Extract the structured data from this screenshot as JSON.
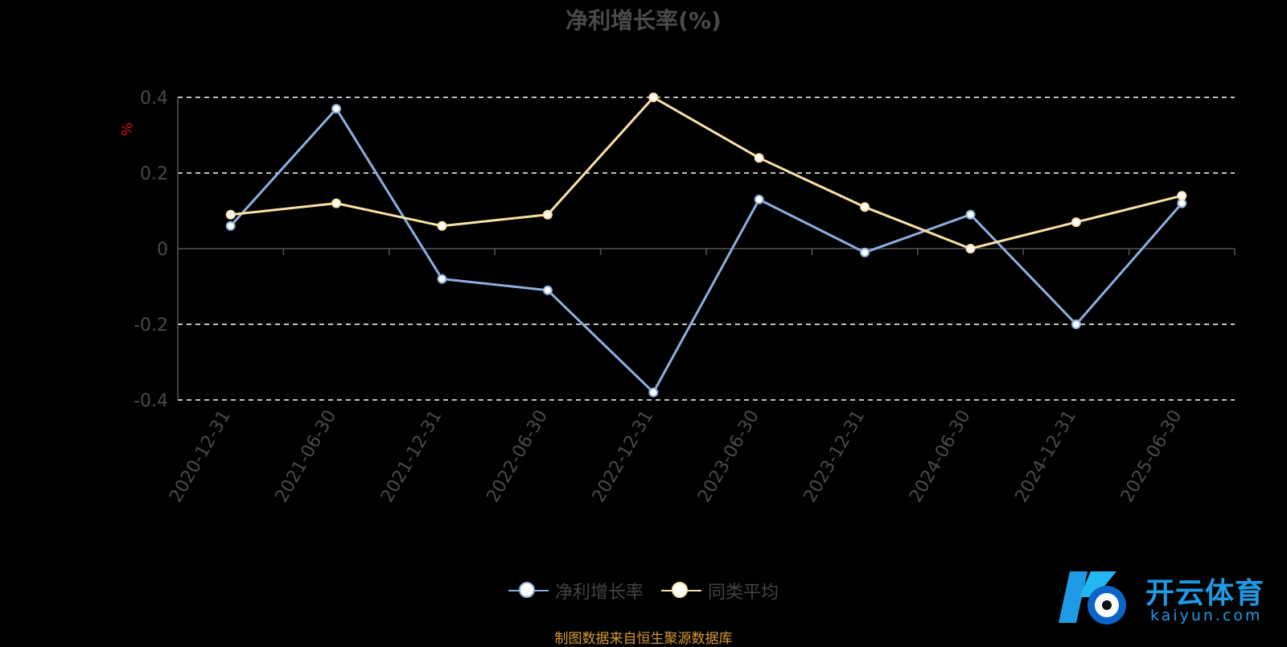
{
  "chart_data": {
    "type": "line",
    "title": "净利增长率(%)",
    "ylabel": "%",
    "categories": [
      "2020-12-31",
      "2021-06-30",
      "2021-12-31",
      "2022-06-30",
      "2022-12-31",
      "2023-06-30",
      "2023-12-31",
      "2024-06-30",
      "2024-12-31",
      "2025-06-30"
    ],
    "series": [
      {
        "name": "净利增长率",
        "color": "#8eaee0",
        "values": [
          0.06,
          0.37,
          -0.08,
          -0.11,
          -0.38,
          0.13,
          -0.01,
          0.09,
          -0.2,
          0.12
        ]
      },
      {
        "name": "同类平均",
        "color": "#fbe0a6",
        "values": [
          0.09,
          0.12,
          0.06,
          0.09,
          0.4,
          0.24,
          0.11,
          0.0,
          0.07,
          0.14
        ]
      }
    ],
    "yticks": [
      "0.4",
      "0.2",
      "0",
      "-0.2",
      "-0.4"
    ],
    "ylim": [
      -0.4,
      0.4
    ],
    "grid": true,
    "legend_position": "bottom"
  },
  "source_note": "制图数据来自恒生聚源数据库",
  "watermark": {
    "brand": "开云体育",
    "sub": "kaiyun.com"
  }
}
